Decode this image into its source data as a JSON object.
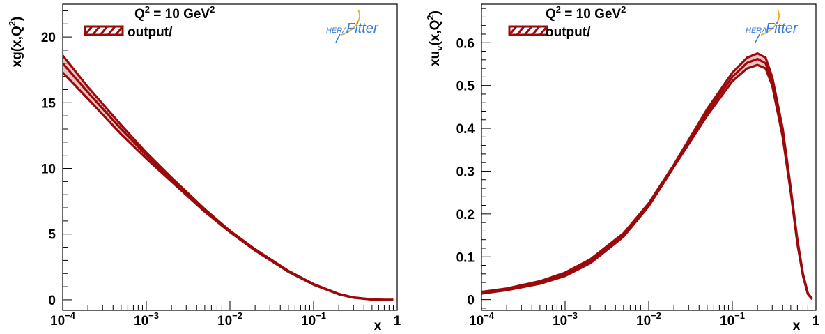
{
  "logo": {
    "part1": "HERA",
    "part2": "Fitter",
    "color": "#3a7fd5"
  },
  "band_color": "#9b0a0a",
  "chart_data": [
    {
      "type": "area",
      "title": "Q² = 10 GeV²",
      "q2_label": {
        "prefix": "Q",
        "sup": "2",
        "middle": " = 10 GeV",
        "sup2": "2"
      },
      "legend": {
        "label": "output/",
        "placement": "top-left"
      },
      "xlabel": "x",
      "ylabel": {
        "main": "xg(x,Q",
        "sup": "2",
        "end": ")"
      },
      "xscale": "log",
      "xlim": [
        0.0001,
        1
      ],
      "ylim": [
        -0.8,
        22.5
      ],
      "yticks": [
        0,
        5,
        10,
        15,
        20
      ],
      "xticks": [
        {
          "value": 0.0001,
          "base": "10",
          "exp": "−4"
        },
        {
          "value": 0.001,
          "base": "10",
          "exp": "−3"
        },
        {
          "value": 0.01,
          "base": "10",
          "exp": "−2"
        },
        {
          "value": 0.1,
          "base": "10",
          "exp": "−1"
        },
        {
          "value": 1,
          "base": "1",
          "exp": ""
        }
      ],
      "grid": false,
      "series": [
        {
          "x": [
            0.0001,
            0.0002,
            0.0005,
            0.001,
            0.002,
            0.005,
            0.01,
            0.02,
            0.05,
            0.1,
            0.2,
            0.3,
            0.5,
            0.7,
            0.9
          ],
          "upper": [
            18.6,
            16.2,
            13.3,
            11.2,
            9.3,
            6.9,
            5.25,
            3.85,
            2.2,
            1.2,
            0.45,
            0.18,
            0.03,
            0.0,
            0.0
          ],
          "central": [
            18.0,
            15.8,
            13.0,
            11.0,
            9.15,
            6.8,
            5.2,
            3.8,
            2.17,
            1.18,
            0.44,
            0.17,
            0.03,
            0.0,
            0.0
          ],
          "lower": [
            17.3,
            15.3,
            12.6,
            10.75,
            9.0,
            6.7,
            5.15,
            3.75,
            2.13,
            1.15,
            0.42,
            0.16,
            0.02,
            0.0,
            0.0
          ]
        }
      ]
    },
    {
      "type": "area",
      "title": "Q² = 10 GeV²",
      "q2_label": {
        "prefix": "Q",
        "sup": "2",
        "middle": " = 10 GeV",
        "sup2": "2"
      },
      "legend": {
        "label": "output/",
        "placement": "top-left"
      },
      "xlabel": "x",
      "ylabel": {
        "main": "xu",
        "sub": "v",
        "mid": "(x,Q",
        "sup": "2",
        "end": ")"
      },
      "xscale": "log",
      "xlim": [
        0.0001,
        1
      ],
      "ylim": [
        -0.025,
        0.69
      ],
      "yticks": [
        0,
        0.1,
        0.2,
        0.3,
        0.4,
        0.5,
        0.6
      ],
      "xticks": [
        {
          "value": 0.0001,
          "base": "10",
          "exp": "−4"
        },
        {
          "value": 0.001,
          "base": "10",
          "exp": "−3"
        },
        {
          "value": 0.01,
          "base": "10",
          "exp": "−2"
        },
        {
          "value": 0.1,
          "base": "10",
          "exp": "−1"
        },
        {
          "value": 1,
          "base": "1",
          "exp": ""
        }
      ],
      "grid": false,
      "series": [
        {
          "x": [
            0.0001,
            0.0002,
            0.0005,
            0.001,
            0.002,
            0.005,
            0.01,
            0.02,
            0.05,
            0.1,
            0.15,
            0.2,
            0.25,
            0.3,
            0.4,
            0.5,
            0.6,
            0.7,
            0.8,
            0.9
          ],
          "upper": [
            0.018,
            0.026,
            0.043,
            0.063,
            0.094,
            0.155,
            0.225,
            0.315,
            0.445,
            0.53,
            0.565,
            0.575,
            0.565,
            0.52,
            0.4,
            0.26,
            0.14,
            0.06,
            0.015,
            0.002
          ],
          "central": [
            0.016,
            0.024,
            0.04,
            0.059,
            0.09,
            0.151,
            0.222,
            0.313,
            0.438,
            0.52,
            0.553,
            0.562,
            0.552,
            0.51,
            0.39,
            0.255,
            0.135,
            0.058,
            0.014,
            0.002
          ],
          "lower": [
            0.014,
            0.022,
            0.037,
            0.055,
            0.085,
            0.147,
            0.218,
            0.31,
            0.43,
            0.51,
            0.54,
            0.548,
            0.54,
            0.5,
            0.38,
            0.25,
            0.13,
            0.055,
            0.013,
            0.001
          ]
        }
      ]
    }
  ]
}
